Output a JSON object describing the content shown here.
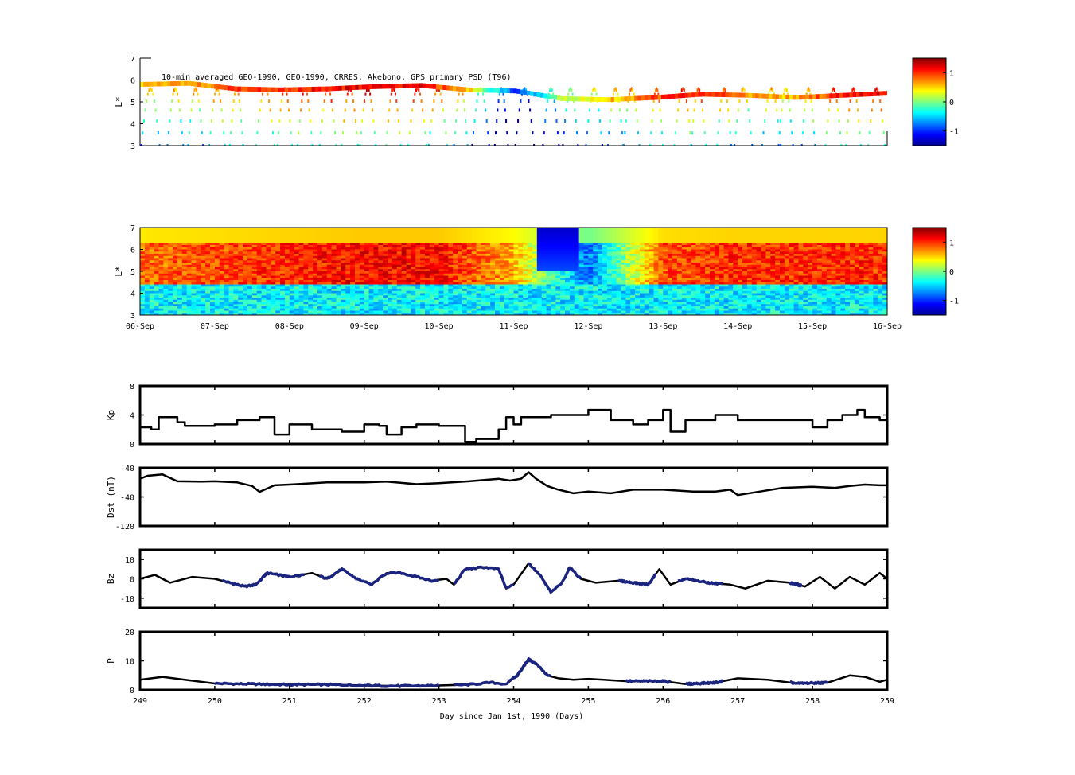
{
  "colors": {
    "line": "#000000",
    "highlight": "#1a237e",
    "jet": [
      "#00008f",
      "#0000ff",
      "#00ffff",
      "#ffff00",
      "#ff0000",
      "#800000"
    ]
  },
  "chart_data": [
    {
      "id": "psd-observed",
      "type": "heatmap",
      "title": "10-min averaged GEO-1990, GEO-1990, CRRES, Akebono, GPS  primary PSD (T96)",
      "ylabel": "L*",
      "ylim": [
        3,
        7
      ],
      "y_ticks": [
        "3",
        "4",
        "5",
        "6",
        "7"
      ],
      "colorbar": {
        "range": [
          -1.5,
          1.5
        ],
        "ticks": [
          "1",
          "0",
          "-1"
        ],
        "tick_values": [
          1,
          0,
          -1
        ]
      },
      "description_values": {
        "geo_track_L": [
          5.8,
          5.85,
          5.6,
          5.55,
          5.6,
          5.7,
          5.75,
          5.55,
          5.5,
          5.15,
          5.1,
          5.2,
          5.35,
          5.3,
          5.2,
          5.3,
          5.4
        ],
        "geo_track_value": [
          0.5,
          0.6,
          0.9,
          1.0,
          1.1,
          1.2,
          1.1,
          0.6,
          -1.0,
          0.1,
          0.5,
          0.9,
          1.1,
          0.6,
          0.6,
          1.1,
          1.2
        ]
      }
    },
    {
      "id": "psd-assimilated",
      "type": "heatmap",
      "ylabel": "L*",
      "ylim": [
        3,
        7
      ],
      "y_ticks": [
        "3",
        "4",
        "5",
        "6",
        "7"
      ],
      "x_ticks": [
        "06-Sep",
        "07-Sep",
        "08-Sep",
        "09-Sep",
        "10-Sep",
        "11-Sep",
        "12-Sep",
        "13-Sep",
        "14-Sep",
        "15-Sep",
        "16-Sep"
      ],
      "colorbar": {
        "range": [
          -1.5,
          1.5
        ],
        "ticks": [
          "1",
          "0",
          "-1"
        ],
        "tick_values": [
          1,
          0,
          -1
        ]
      },
      "outer_intensity_by_day": [
        0.8,
        0.9,
        1.0,
        1.1,
        1.1,
        0.6,
        -0.8,
        0.9,
        1.0,
        1.0,
        1.0
      ]
    },
    {
      "id": "kp",
      "type": "line",
      "ylabel": "Kp",
      "ylim": [
        0,
        8
      ],
      "y_ticks": [
        "0",
        "4",
        "8"
      ],
      "x": [
        249.0,
        249.15,
        249.25,
        249.5,
        249.6,
        250.0,
        250.3,
        250.6,
        250.7,
        250.8,
        251.0,
        251.3,
        251.7,
        252.0,
        252.2,
        252.3,
        252.5,
        252.7,
        253.0,
        253.35,
        253.5,
        253.8,
        253.9,
        254.0,
        254.1,
        254.5,
        254.9,
        255.0,
        255.3,
        255.6,
        255.8,
        256.0,
        256.1,
        256.3,
        256.7,
        257.0,
        257.6,
        258.0,
        258.2,
        258.4,
        258.6,
        258.7,
        258.9,
        259.0
      ],
      "values": [
        2.3,
        2.0,
        3.7,
        3.0,
        2.5,
        2.7,
        3.3,
        3.7,
        3.7,
        1.3,
        2.7,
        2.0,
        1.7,
        2.7,
        2.5,
        1.3,
        2.3,
        2.7,
        2.5,
        0.3,
        0.7,
        2.0,
        3.7,
        2.7,
        3.7,
        4.0,
        4.0,
        4.7,
        3.3,
        2.7,
        3.3,
        4.7,
        1.7,
        3.3,
        4.0,
        3.3,
        3.3,
        2.3,
        3.3,
        4.0,
        4.7,
        3.7,
        3.3,
        2.3
      ]
    },
    {
      "id": "dst",
      "type": "line",
      "ylabel": "Dst (nT)",
      "ylim": [
        -120,
        40
      ],
      "y_ticks": [
        "-120",
        "-40",
        "40"
      ],
      "x": [
        249.0,
        249.1,
        249.3,
        249.5,
        249.8,
        250.0,
        250.3,
        250.5,
        250.6,
        250.8,
        251.0,
        251.5,
        252.0,
        252.3,
        252.7,
        253.0,
        253.4,
        253.8,
        253.95,
        254.1,
        254.2,
        254.3,
        254.45,
        254.6,
        254.8,
        255.0,
        255.3,
        255.6,
        256.0,
        256.4,
        256.7,
        256.9,
        257.0,
        257.3,
        257.6,
        258.0,
        258.3,
        258.5,
        258.7,
        258.9,
        259.0
      ],
      "values": [
        10,
        18,
        22,
        3,
        2,
        3,
        0,
        -10,
        -26,
        -8,
        -6,
        0,
        0,
        2,
        -5,
        -2,
        3,
        10,
        5,
        10,
        28,
        10,
        -10,
        -20,
        -30,
        -25,
        -30,
        -20,
        -20,
        -25,
        -25,
        -20,
        -35,
        -25,
        -15,
        -12,
        -15,
        -10,
        -6,
        -8,
        -8
      ]
    },
    {
      "id": "bz",
      "type": "line",
      "ylabel": "Bz",
      "ylim": [
        -15,
        15
      ],
      "y_ticks": [
        "-10",
        "0",
        "10"
      ],
      "x": [
        249.0,
        249.2,
        249.4,
        249.7,
        250.0,
        250.2,
        250.4,
        250.55,
        250.7,
        251.0,
        251.3,
        251.5,
        251.7,
        251.9,
        252.1,
        252.3,
        252.5,
        252.7,
        252.9,
        253.1,
        253.2,
        253.35,
        253.6,
        253.8,
        253.9,
        254.0,
        254.2,
        254.35,
        254.5,
        254.65,
        254.75,
        254.9,
        255.1,
        255.4,
        255.6,
        255.8,
        255.95,
        256.1,
        256.3,
        256.6,
        256.9,
        257.1,
        257.4,
        257.7,
        257.9,
        258.1,
        258.3,
        258.5,
        258.7,
        258.9,
        259.0
      ],
      "values": [
        0,
        2,
        -2,
        1,
        0,
        -2,
        -4,
        -3,
        3,
        1,
        3,
        0,
        5,
        0,
        -3,
        3,
        3,
        1,
        -1,
        0,
        -3,
        5,
        6,
        5,
        -5,
        -3,
        8,
        2,
        -7,
        -2,
        6,
        0,
        -2,
        -1,
        -2,
        -3,
        5,
        -3,
        0,
        -2,
        -3,
        -5,
        -1,
        -2,
        -4,
        1,
        -5,
        1,
        -3,
        3,
        0
      ],
      "highlight_ranges": [
        [
          250.1,
          250.7
        ],
        [
          250.6,
          251.2
        ],
        [
          251.4,
          252.0
        ],
        [
          252.0,
          253.0
        ],
        [
          253.2,
          254.0
        ],
        [
          254.2,
          254.9
        ],
        [
          255.4,
          255.9
        ],
        [
          256.2,
          256.8
        ],
        [
          257.7,
          257.85
        ]
      ]
    },
    {
      "id": "pressure",
      "type": "line",
      "ylabel": "P",
      "xlabel": "Day since Jan 1st, 1990 (Days)",
      "ylim": [
        0,
        20
      ],
      "y_ticks": [
        "0",
        "10",
        "20"
      ],
      "x_ticks": [
        "249",
        "250",
        "251",
        "252",
        "253",
        "254",
        "255",
        "256",
        "257",
        "258",
        "259"
      ],
      "x": [
        249.0,
        249.3,
        249.6,
        250.0,
        250.5,
        251.0,
        251.5,
        252.0,
        252.5,
        253.0,
        253.4,
        253.7,
        253.9,
        254.05,
        254.2,
        254.3,
        254.45,
        254.6,
        254.8,
        255.0,
        255.5,
        256.0,
        256.3,
        256.7,
        257.0,
        257.4,
        257.8,
        258.2,
        258.5,
        258.7,
        258.9,
        259.0
      ],
      "values": [
        3.5,
        4.5,
        3.5,
        2.2,
        2.0,
        1.8,
        1.8,
        1.5,
        1.3,
        1.5,
        1.8,
        2.5,
        2.0,
        5.0,
        10.5,
        9.0,
        5.0,
        4.0,
        3.5,
        3.8,
        3.0,
        3.0,
        2.0,
        2.5,
        4.0,
        3.5,
        2.2,
        2.5,
        5.0,
        4.5,
        2.8,
        3.5
      ],
      "highlight_ranges": [
        [
          250.0,
          251.0
        ],
        [
          251.0,
          252.0
        ],
        [
          252.0,
          253.0
        ],
        [
          253.2,
          254.3
        ],
        [
          254.0,
          254.5
        ],
        [
          255.5,
          256.1
        ],
        [
          256.3,
          256.8
        ],
        [
          257.7,
          258.2
        ]
      ]
    }
  ]
}
